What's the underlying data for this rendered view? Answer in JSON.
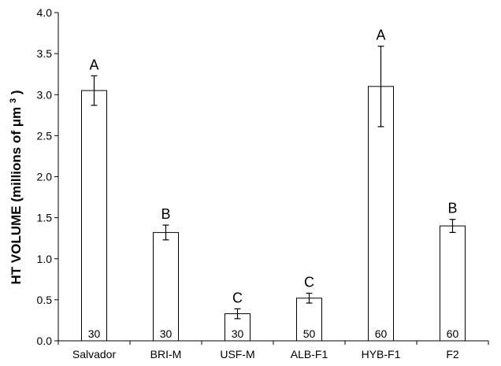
{
  "chart_data": {
    "type": "bar",
    "categories": [
      "Salvador",
      "BRI-M",
      "USF-M",
      "ALB-F1",
      "HYB-F1",
      "F2"
    ],
    "values": [
      3.05,
      1.32,
      0.33,
      0.52,
      3.1,
      1.4
    ],
    "error": [
      0.18,
      0.09,
      0.06,
      0.06,
      0.49,
      0.08
    ],
    "group_letters": [
      "A",
      "B",
      "C",
      "C",
      "A",
      "B"
    ],
    "n_labels": [
      "30",
      "30",
      "30",
      "50",
      "60",
      "60"
    ],
    "ylabel_main": "HT VOLUME",
    "ylabel_paren": "(millions of μm",
    "ylabel_sup": "3",
    "ylabel_close": ")",
    "ylim": [
      0,
      4.0
    ],
    "yticks": [
      "0.0",
      "0.5",
      "1.0",
      "1.5",
      "2.0",
      "2.5",
      "3.0",
      "3.5",
      "4.0"
    ],
    "grid": false,
    "bar_fill": "#ffffff",
    "bar_stroke": "#000000"
  }
}
